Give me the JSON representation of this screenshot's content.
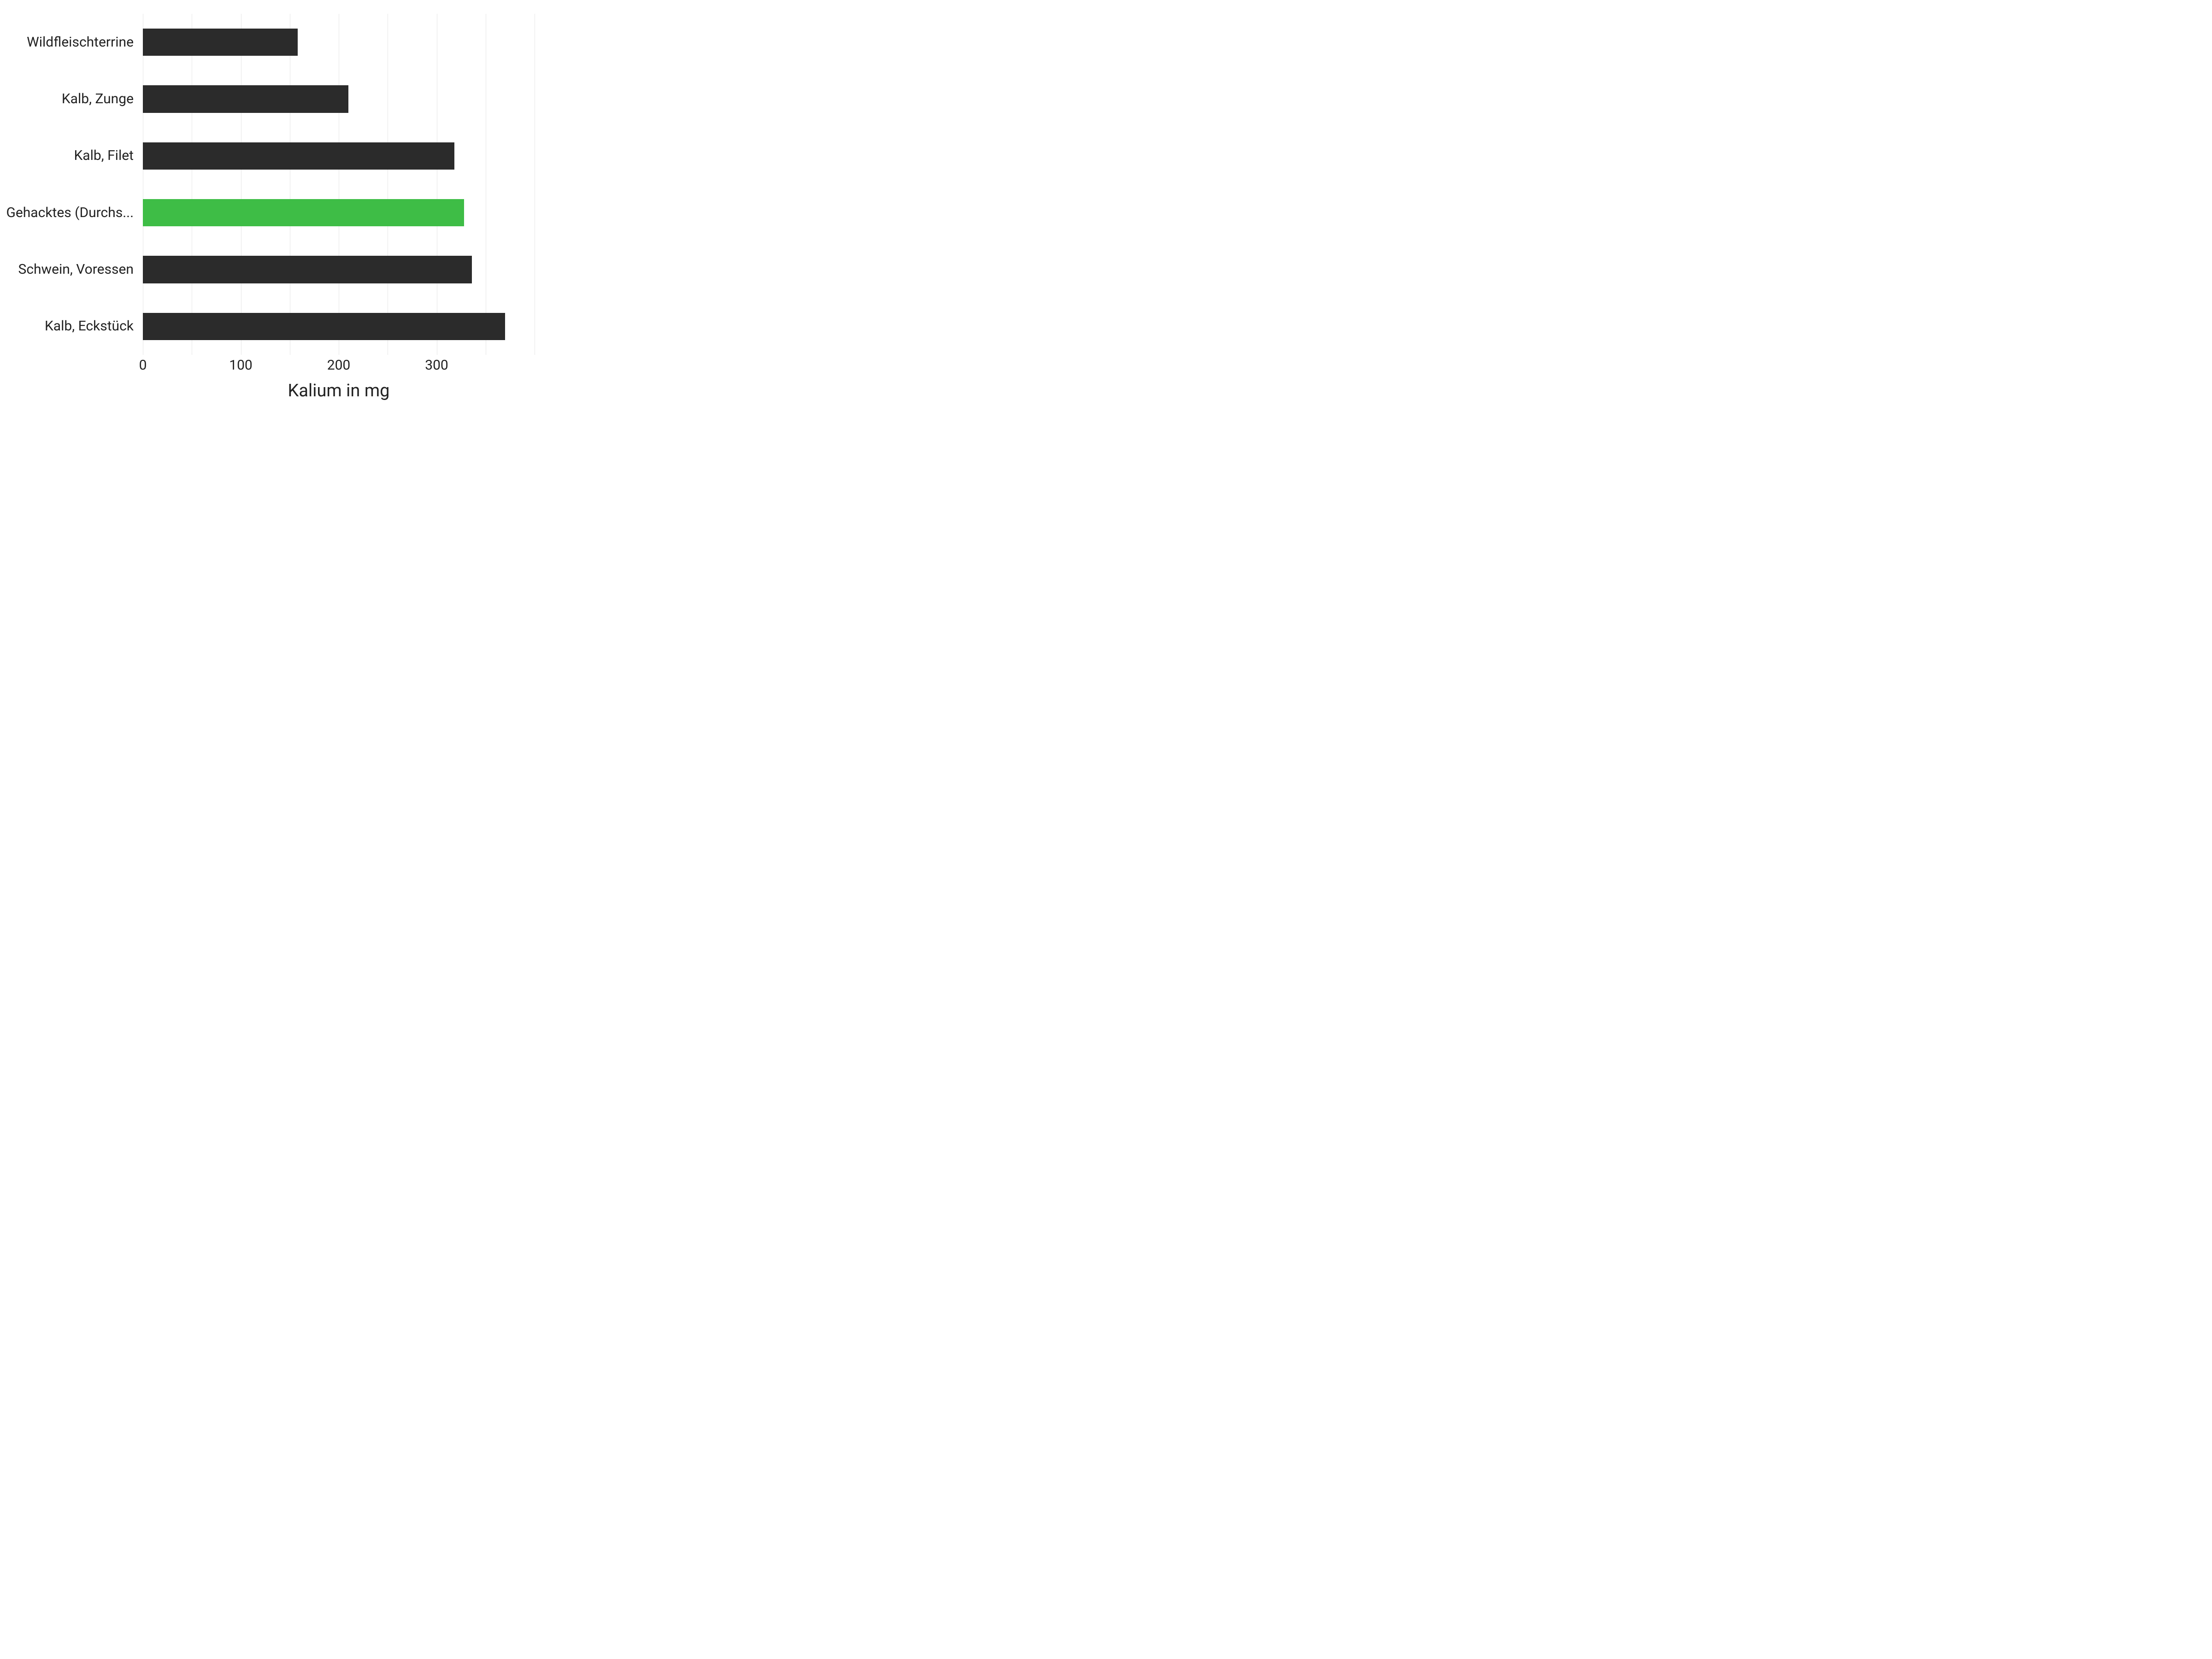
{
  "chart": {
    "type": "bar-horizontal",
    "x_title": "Kalium in mg",
    "x_ticks": [
      0,
      100,
      200,
      300
    ],
    "x_max": 400,
    "bar_color_default": "#2b2b2b",
    "bar_color_highlight": "#3ebd46",
    "background_color": "#ffffff",
    "grid_color": "#e6e6e6",
    "label_fontsize": 30,
    "title_fontsize": 38,
    "bars": [
      {
        "label": "Wildfleischterrine",
        "value": 158,
        "highlight": false
      },
      {
        "label": "Kalb, Zunge",
        "value": 210,
        "highlight": false
      },
      {
        "label": "Kalb, Filet",
        "value": 318,
        "highlight": false
      },
      {
        "label": "Gehacktes (Durchs...",
        "value": 328,
        "highlight": true
      },
      {
        "label": "Schwein, Voressen",
        "value": 336,
        "highlight": false
      },
      {
        "label": "Kalb, Eckstück",
        "value": 370,
        "highlight": false
      }
    ]
  }
}
